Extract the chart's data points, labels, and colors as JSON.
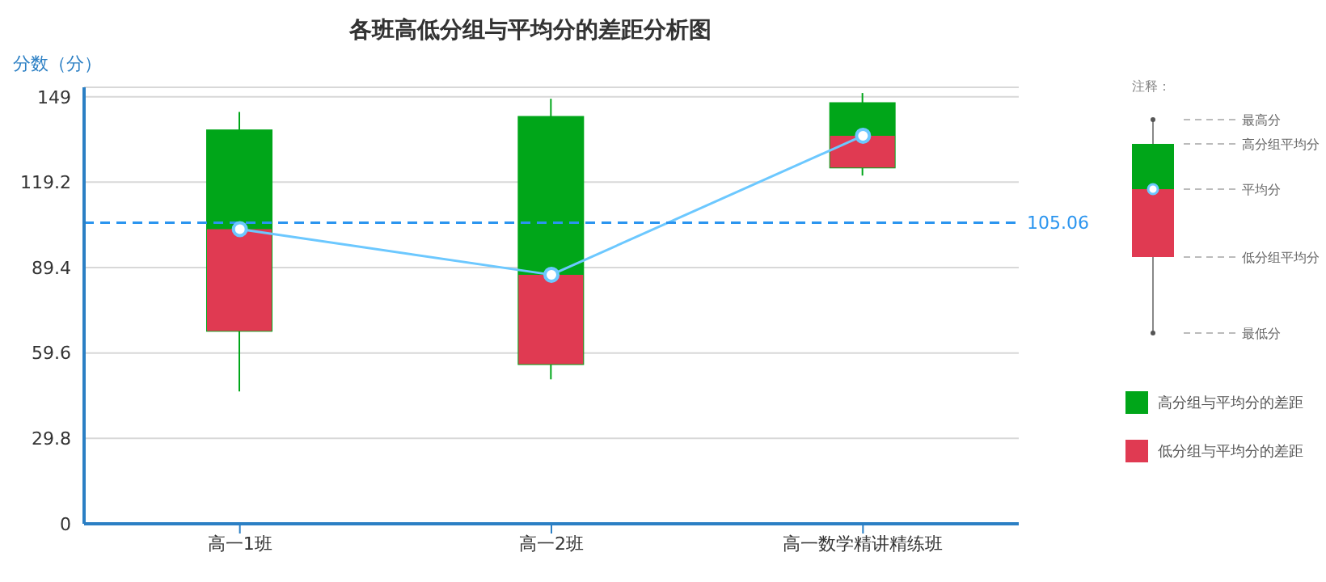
{
  "chart_data": {
    "type": "box",
    "title": "各班高低分组与平均分的差距分析图",
    "ylabel": "分数（分）",
    "categories": [
      "高一1班",
      "高一2班",
      "高一数学精讲精练班"
    ],
    "boxes": [
      {
        "low": 46.2,
        "q1": 67.3,
        "median": 102.8,
        "q3": 137.3,
        "high": 143.7
      },
      {
        "low": 50.4,
        "q1": 55.7,
        "median": 86.9,
        "q3": 142.0,
        "high": 148.3
      },
      {
        "low": 121.5,
        "q1": 124.3,
        "median": 135.4,
        "q3": 146.8,
        "high": 150.3
      }
    ],
    "series": [
      {
        "type": "bar",
        "name": "高分组与平均分的差距",
        "color": "#00a619",
        "values": [
          34.5,
          55.1,
          11.4
        ],
        "base": [
          102.8,
          86.9,
          135.4
        ]
      },
      {
        "type": "bar",
        "name": "低分组与平均分的差距",
        "color": "#e03a52",
        "values": [
          35.5,
          31.2,
          11.1
        ],
        "base": [
          67.3,
          55.7,
          124.3
        ]
      },
      {
        "type": "line",
        "color": "#6cc8ff",
        "values": [
          102.8,
          86.9,
          135.4
        ]
      }
    ],
    "marker": "circle",
    "ref_lines": [
      {
        "axis": "y",
        "value": 105.06,
        "label": "105.06",
        "color": "#2b95ef",
        "line_style": "dashed"
      }
    ],
    "ylim": [
      0,
      152.3
    ],
    "yticks": [
      0,
      29.8,
      59.6,
      89.4,
      119.2,
      149
    ],
    "grid": "y",
    "legend": "right",
    "annotations": [
      "注释：",
      "最高分",
      "高分组平均分",
      "平均分",
      "低分组平均分",
      "最低分"
    ]
  }
}
